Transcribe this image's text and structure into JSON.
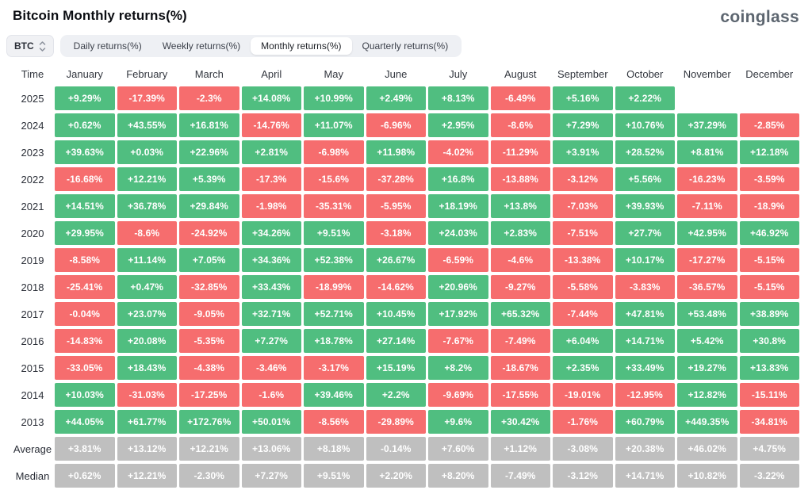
{
  "header": {
    "title": "Bitcoin Monthly returns(%)",
    "logo": "coinglass"
  },
  "controls": {
    "symbol": "BTC",
    "tabs": [
      {
        "label": "Daily returns(%)",
        "active": false
      },
      {
        "label": "Weekly returns(%)",
        "active": false
      },
      {
        "label": "Monthly returns(%)",
        "active": true
      },
      {
        "label": "Quarterly returns(%)",
        "active": false
      }
    ]
  },
  "table": {
    "time_header": "Time"
  },
  "colors": {
    "positive": "#50be80",
    "negative": "#f66d6e",
    "summary": "#bfbfbf"
  },
  "chart_data": {
    "type": "heatmap",
    "title": "Bitcoin Monthly returns(%)",
    "unit": "percent",
    "columns": [
      "January",
      "February",
      "March",
      "April",
      "May",
      "June",
      "July",
      "August",
      "September",
      "October",
      "November",
      "December"
    ],
    "rows": [
      {
        "label": "2025",
        "kind": "year",
        "values": [
          "+9.29%",
          "-17.39%",
          "-2.3%",
          "+14.08%",
          "+10.99%",
          "+2.49%",
          "+8.13%",
          "-6.49%",
          "+5.16%",
          "+2.22%",
          "",
          ""
        ]
      },
      {
        "label": "2024",
        "kind": "year",
        "values": [
          "+0.62%",
          "+43.55%",
          "+16.81%",
          "-14.76%",
          "+11.07%",
          "-6.96%",
          "+2.95%",
          "-8.6%",
          "+7.29%",
          "+10.76%",
          "+37.29%",
          "-2.85%"
        ]
      },
      {
        "label": "2023",
        "kind": "year",
        "values": [
          "+39.63%",
          "+0.03%",
          "+22.96%",
          "+2.81%",
          "-6.98%",
          "+11.98%",
          "-4.02%",
          "-11.29%",
          "+3.91%",
          "+28.52%",
          "+8.81%",
          "+12.18%"
        ]
      },
      {
        "label": "2022",
        "kind": "year",
        "values": [
          "-16.68%",
          "+12.21%",
          "+5.39%",
          "-17.3%",
          "-15.6%",
          "-37.28%",
          "+16.8%",
          "-13.88%",
          "-3.12%",
          "+5.56%",
          "-16.23%",
          "-3.59%"
        ]
      },
      {
        "label": "2021",
        "kind": "year",
        "values": [
          "+14.51%",
          "+36.78%",
          "+29.84%",
          "-1.98%",
          "-35.31%",
          "-5.95%",
          "+18.19%",
          "+13.8%",
          "-7.03%",
          "+39.93%",
          "-7.11%",
          "-18.9%"
        ]
      },
      {
        "label": "2020",
        "kind": "year",
        "values": [
          "+29.95%",
          "-8.6%",
          "-24.92%",
          "+34.26%",
          "+9.51%",
          "-3.18%",
          "+24.03%",
          "+2.83%",
          "-7.51%",
          "+27.7%",
          "+42.95%",
          "+46.92%"
        ]
      },
      {
        "label": "2019",
        "kind": "year",
        "values": [
          "-8.58%",
          "+11.14%",
          "+7.05%",
          "+34.36%",
          "+52.38%",
          "+26.67%",
          "-6.59%",
          "-4.6%",
          "-13.38%",
          "+10.17%",
          "-17.27%",
          "-5.15%"
        ]
      },
      {
        "label": "2018",
        "kind": "year",
        "values": [
          "-25.41%",
          "+0.47%",
          "-32.85%",
          "+33.43%",
          "-18.99%",
          "-14.62%",
          "+20.96%",
          "-9.27%",
          "-5.58%",
          "-3.83%",
          "-36.57%",
          "-5.15%"
        ]
      },
      {
        "label": "2017",
        "kind": "year",
        "values": [
          "-0.04%",
          "+23.07%",
          "-9.05%",
          "+32.71%",
          "+52.71%",
          "+10.45%",
          "+17.92%",
          "+65.32%",
          "-7.44%",
          "+47.81%",
          "+53.48%",
          "+38.89%"
        ]
      },
      {
        "label": "2016",
        "kind": "year",
        "values": [
          "-14.83%",
          "+20.08%",
          "-5.35%",
          "+7.27%",
          "+18.78%",
          "+27.14%",
          "-7.67%",
          "-7.49%",
          "+6.04%",
          "+14.71%",
          "+5.42%",
          "+30.8%"
        ]
      },
      {
        "label": "2015",
        "kind": "year",
        "values": [
          "-33.05%",
          "+18.43%",
          "-4.38%",
          "-3.46%",
          "-3.17%",
          "+15.19%",
          "+8.2%",
          "-18.67%",
          "+2.35%",
          "+33.49%",
          "+19.27%",
          "+13.83%"
        ]
      },
      {
        "label": "2014",
        "kind": "year",
        "values": [
          "+10.03%",
          "-31.03%",
          "-17.25%",
          "-1.6%",
          "+39.46%",
          "+2.2%",
          "-9.69%",
          "-17.55%",
          "-19.01%",
          "-12.95%",
          "+12.82%",
          "-15.11%"
        ]
      },
      {
        "label": "2013",
        "kind": "year",
        "values": [
          "+44.05%",
          "+61.77%",
          "+172.76%",
          "+50.01%",
          "-8.56%",
          "-29.89%",
          "+9.6%",
          "+30.42%",
          "-1.76%",
          "+60.79%",
          "+449.35%",
          "-34.81%"
        ]
      },
      {
        "label": "Average",
        "kind": "summary",
        "values": [
          "+3.81%",
          "+13.12%",
          "+12.21%",
          "+13.06%",
          "+8.18%",
          "-0.14%",
          "+7.60%",
          "+1.12%",
          "-3.08%",
          "+20.38%",
          "+46.02%",
          "+4.75%"
        ]
      },
      {
        "label": "Median",
        "kind": "summary",
        "values": [
          "+0.62%",
          "+12.21%",
          "-2.30%",
          "+7.27%",
          "+9.51%",
          "+2.20%",
          "+8.20%",
          "-7.49%",
          "-3.12%",
          "+14.71%",
          "+10.82%",
          "-3.22%"
        ]
      }
    ]
  }
}
